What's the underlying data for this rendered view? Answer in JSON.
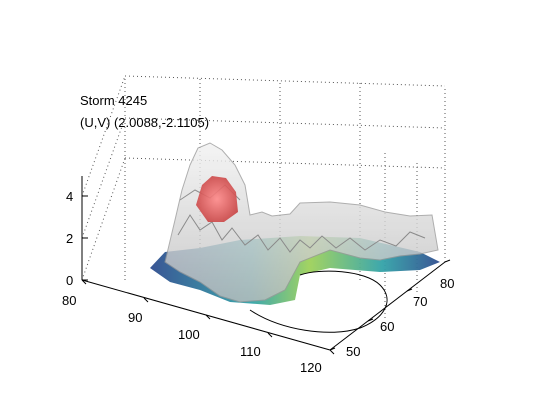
{
  "chart_data": {
    "type": "surface",
    "title": "Storm 4245",
    "subtitle": "(U,V) (2.0088,-2.1105)",
    "x_ticks": [
      80,
      90,
      100,
      110,
      120
    ],
    "y_ticks": [
      50,
      60,
      70,
      80
    ],
    "z_ticks": [
      0,
      2,
      4
    ],
    "xlim": [
      80,
      120
    ],
    "ylim": [
      50,
      80
    ],
    "zlim": [
      0,
      5
    ],
    "grid": true,
    "colors": {
      "surface_fill": "#dcdcdc",
      "surface_edge": "#9a9a9a",
      "peak_red": "#e05555",
      "base_dark": "#2f4d8f",
      "base_teal": "#33a3a8",
      "base_green": "#9ed15a",
      "grid": "#555555",
      "axis": "#000000"
    }
  }
}
